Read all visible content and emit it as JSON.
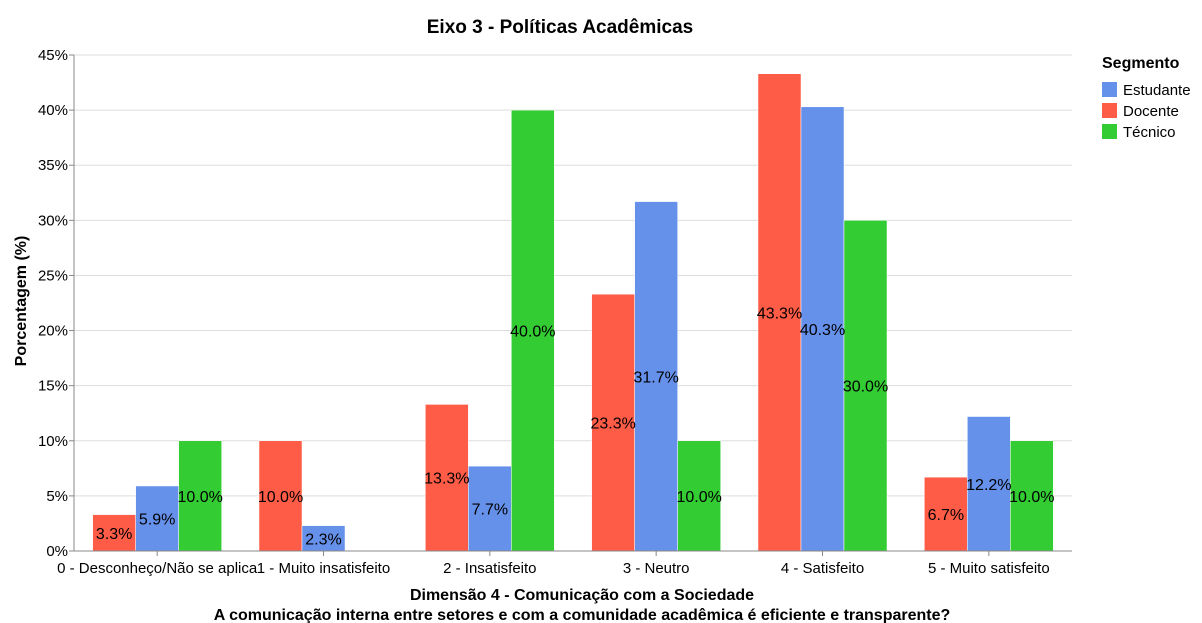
{
  "chart_data": {
    "type": "bar",
    "title": "Eixo 3 - Políticas Acadêmicas",
    "xlabel": "Dimensão 4 - Comunicação com a Sociedade",
    "xlabel2": "A comunicação interna entre setores e com a comunidade acadêmica é eficiente e transparente?",
    "ylabel": "Porcentagem (%)",
    "ylim": [
      0,
      45
    ],
    "yticks": [
      "0%",
      "5%",
      "10%",
      "15%",
      "20%",
      "25%",
      "30%",
      "35%",
      "40%",
      "45%"
    ],
    "grid": true,
    "legend_title": "Segmento",
    "legend_position": "top-right",
    "categories": [
      "0 - Desconheço/Não se aplica",
      "1 - Muito insatisfeito",
      "2 - Insatisfeito",
      "3 - Neutro",
      "4 - Satisfeito",
      "5 - Muito satisfeito"
    ],
    "series": [
      {
        "name": "Docente",
        "color": "#ff5c47",
        "values": [
          3.3,
          10.0,
          13.3,
          23.3,
          43.3,
          6.7
        ],
        "labels": [
          "3.3%",
          "10.0%",
          "13.3%",
          "23.3%",
          "43.3%",
          "6.7%"
        ]
      },
      {
        "name": "Estudante",
        "color": "#6691eb",
        "values": [
          5.9,
          2.3,
          7.7,
          31.7,
          40.3,
          12.2
        ],
        "labels": [
          "5.9%",
          "2.3%",
          "7.7%",
          "31.7%",
          "40.3%",
          "12.2%"
        ]
      },
      {
        "name": "Técnico",
        "color": "#33cc33",
        "values": [
          10.0,
          null,
          40.0,
          10.0,
          30.0,
          10.0
        ],
        "labels": [
          "10.0%",
          "",
          "40.0%",
          "10.0%",
          "30.0%",
          "10.0%"
        ]
      }
    ],
    "legend_order": [
      "Estudante",
      "Docente",
      "Técnico"
    ]
  }
}
